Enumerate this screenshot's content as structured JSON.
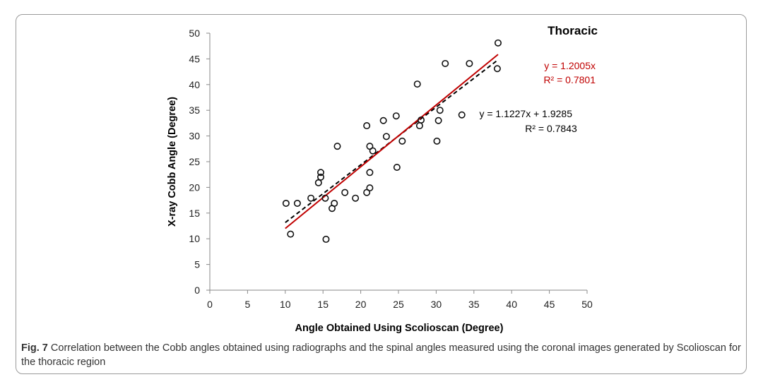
{
  "chart_data": {
    "type": "scatter",
    "title": "Thoracic",
    "xlabel": "Angle Obtained Using Scolioscan (Degree)",
    "ylabel": "X-ray Cobb Angle (Degree)",
    "xlim": [
      0,
      50
    ],
    "ylim": [
      0,
      50
    ],
    "xticks": [
      0,
      5,
      10,
      15,
      20,
      25,
      30,
      35,
      40,
      45,
      50
    ],
    "yticks": [
      0,
      5,
      10,
      15,
      20,
      25,
      30,
      35,
      40,
      45,
      50
    ],
    "grid": false,
    "points": [
      [
        10.1,
        16.9
      ],
      [
        11.6,
        16.9
      ],
      [
        13.4,
        17.9
      ],
      [
        14.4,
        20.9
      ],
      [
        14.7,
        22.0
      ],
      [
        14.7,
        22.9
      ],
      [
        15.3,
        17.9
      ],
      [
        16.5,
        16.9
      ],
      [
        16.2,
        15.9
      ],
      [
        15.4,
        9.9
      ],
      [
        10.7,
        10.9
      ],
      [
        16.9,
        28.0
      ],
      [
        17.9,
        19.0
      ],
      [
        19.3,
        17.9
      ],
      [
        20.8,
        32.0
      ],
      [
        20.8,
        19.0
      ],
      [
        21.2,
        19.9
      ],
      [
        21.2,
        22.9
      ],
      [
        21.2,
        28.0
      ],
      [
        21.6,
        27.1
      ],
      [
        23.0,
        33.0
      ],
      [
        23.4,
        29.9
      ],
      [
        24.7,
        33.9
      ],
      [
        25.5,
        29.0
      ],
      [
        24.8,
        23.9
      ],
      [
        27.5,
        40.1
      ],
      [
        31.2,
        44.1
      ],
      [
        34.4,
        44.1
      ],
      [
        38.2,
        48.1
      ],
      [
        38.1,
        43.1
      ],
      [
        30.5,
        35.0
      ],
      [
        30.3,
        33.0
      ],
      [
        28.0,
        33.1
      ],
      [
        27.8,
        32.0
      ],
      [
        33.4,
        34.1
      ],
      [
        30.1,
        29.0
      ]
    ],
    "fits": [
      {
        "name": "through-origin",
        "slope": 1.2005,
        "intercept": 0,
        "x_range": [
          10,
          38.2
        ],
        "color": "#c00000",
        "style": "solid",
        "equation": "y = 1.2005x",
        "r2": "R² = 0.7801"
      },
      {
        "name": "linear",
        "slope": 1.1227,
        "intercept": 1.9285,
        "x_range": [
          10,
          38
        ],
        "color": "#000000",
        "style": "dashed",
        "equation": "y = 1.1227x + 1.9285",
        "r2": "R² = 0.7843"
      }
    ]
  },
  "caption": {
    "label": "Fig. 7",
    "text": " Correlation between the Cobb angles obtained using radiographs and the spinal angles measured using the coronal images generated by Scolioscan for the thoracic region"
  }
}
